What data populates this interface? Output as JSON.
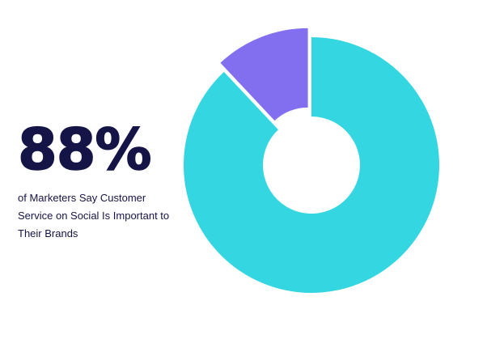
{
  "headline": {
    "value": "88%",
    "caption": "of Marketers Say Customer Service on Social Is Important to Their Brands"
  },
  "chart_data": {
    "type": "pie",
    "donut": true,
    "title": "",
    "categories": [
      "",
      ""
    ],
    "values": [
      88,
      12
    ],
    "colors": [
      "#34d6e2",
      "#826ff0"
    ],
    "exploded": [
      false,
      true
    ],
    "legend": "none"
  }
}
